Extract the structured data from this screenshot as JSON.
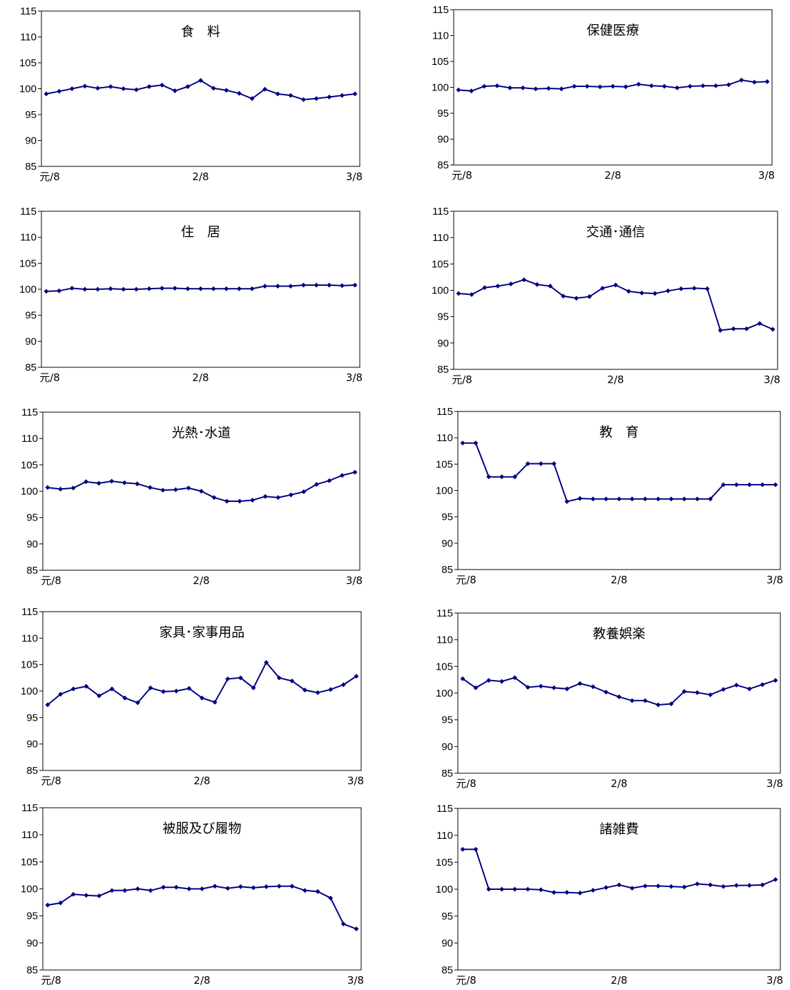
{
  "chart_data": [
    {
      "type": "line",
      "title": "食　料",
      "x_labels": [
        "元/8",
        "2/8",
        "3/8"
      ],
      "ylim": [
        85,
        115
      ],
      "y_ticks": [
        85,
        90,
        95,
        100,
        105,
        110,
        115
      ],
      "color": "#000080",
      "values": [
        99,
        99.5,
        100,
        100.5,
        100.1,
        100.4,
        100,
        99.8,
        100.4,
        100.7,
        99.6,
        100.4,
        101.6,
        100.1,
        99.7,
        99.1,
        98.1,
        99.9,
        99,
        98.7,
        97.9,
        98.1,
        98.4,
        98.7,
        99
      ]
    },
    {
      "type": "line",
      "title": "保健医療",
      "x_labels": [
        "元/8",
        "2/8",
        "3/8"
      ],
      "ylim": [
        85,
        115
      ],
      "y_ticks": [
        85,
        90,
        95,
        100,
        105,
        110,
        115
      ],
      "color": "#000080",
      "values": [
        99.5,
        99.3,
        100.2,
        100.3,
        99.9,
        99.9,
        99.7,
        99.8,
        99.7,
        100.2,
        100.2,
        100.1,
        100.2,
        100.1,
        100.6,
        100.3,
        100.2,
        99.9,
        100.2,
        100.3,
        100.3,
        100.5,
        101.4,
        101,
        101.1
      ]
    },
    {
      "type": "line",
      "title": "住　居",
      "x_labels": [
        "元/8",
        "2/8",
        "3/8"
      ],
      "ylim": [
        85,
        115
      ],
      "y_ticks": [
        85,
        90,
        95,
        100,
        105,
        110,
        115
      ],
      "color": "#000080",
      "values": [
        99.6,
        99.7,
        100.2,
        100,
        100,
        100.1,
        100,
        100,
        100.1,
        100.2,
        100.2,
        100.1,
        100.1,
        100.1,
        100.1,
        100.1,
        100.1,
        100.6,
        100.6,
        100.6,
        100.8,
        100.8,
        100.8,
        100.7,
        100.8
      ]
    },
    {
      "type": "line",
      "title": "交通･通信",
      "x_labels": [
        "元/8",
        "2/8",
        "3/8"
      ],
      "ylim": [
        85,
        115
      ],
      "y_ticks": [
        85,
        90,
        95,
        100,
        105,
        110,
        115
      ],
      "color": "#000080",
      "values": [
        99.4,
        99.2,
        100.5,
        100.8,
        101.2,
        102,
        101.1,
        100.8,
        98.9,
        98.5,
        98.8,
        100.4,
        101,
        99.8,
        99.5,
        99.4,
        99.9,
        100.3,
        100.4,
        100.3,
        92.4,
        92.7,
        92.7,
        93.7,
        92.6
      ]
    },
    {
      "type": "line",
      "title": "光熱･水道",
      "x_labels": [
        "元/8",
        "2/8",
        "3/8"
      ],
      "ylim": [
        85,
        115
      ],
      "y_ticks": [
        85,
        90,
        95,
        100,
        105,
        110,
        115
      ],
      "color": "#000080",
      "values": [
        100.7,
        100.4,
        100.6,
        101.8,
        101.5,
        101.9,
        101.6,
        101.4,
        100.7,
        100.2,
        100.3,
        100.6,
        100,
        98.8,
        98.1,
        98.1,
        98.3,
        99,
        98.8,
        99.3,
        99.9,
        101.3,
        102,
        103,
        103.6
      ]
    },
    {
      "type": "line",
      "title": "教　育",
      "x_labels": [
        "元/8",
        "2/8",
        "3/8"
      ],
      "ylim": [
        85,
        115
      ],
      "y_ticks": [
        85,
        90,
        95,
        100,
        105,
        110,
        115
      ],
      "color": "#000080",
      "values": [
        109,
        109,
        102.6,
        102.6,
        102.6,
        105.1,
        105.1,
        105.1,
        97.9,
        98.5,
        98.4,
        98.4,
        98.4,
        98.4,
        98.4,
        98.4,
        98.4,
        98.4,
        98.4,
        98.4,
        101.1,
        101.1,
        101.1,
        101.1,
        101.1
      ]
    },
    {
      "type": "line",
      "title": "家具･家事用品",
      "x_labels": [
        "元/8",
        "2/8",
        "3/8"
      ],
      "ylim": [
        85,
        115
      ],
      "y_ticks": [
        85,
        90,
        95,
        100,
        105,
        110,
        115
      ],
      "color": "#000080",
      "values": [
        97.4,
        99.4,
        100.4,
        100.9,
        99.1,
        100.4,
        98.7,
        97.8,
        100.6,
        99.9,
        100,
        100.5,
        98.7,
        97.9,
        102.3,
        102.5,
        100.6,
        105.4,
        102.5,
        101.9,
        100.2,
        99.7,
        100.3,
        101.2,
        102.8
      ]
    },
    {
      "type": "line",
      "title": "教養娯楽",
      "x_labels": [
        "元/8",
        "2/8",
        "3/8"
      ],
      "ylim": [
        85,
        115
      ],
      "y_ticks": [
        85,
        90,
        95,
        100,
        105,
        110,
        115
      ],
      "color": "#000080",
      "values": [
        102.7,
        101,
        102.4,
        102.2,
        102.9,
        101.1,
        101.3,
        101,
        100.8,
        101.8,
        101.2,
        100.2,
        99.3,
        98.6,
        98.6,
        97.8,
        98,
        100.3,
        100.1,
        99.7,
        100.7,
        101.5,
        100.8,
        101.6,
        102.4
      ]
    },
    {
      "type": "line",
      "title": "被服及び履物",
      "x_labels": [
        "元/8",
        "2/8",
        "3/8"
      ],
      "ylim": [
        85,
        115
      ],
      "y_ticks": [
        85,
        90,
        95,
        100,
        105,
        110,
        115
      ],
      "color": "#000080",
      "values": [
        97,
        97.4,
        99,
        98.8,
        98.7,
        99.7,
        99.7,
        100,
        99.7,
        100.3,
        100.3,
        100,
        100,
        100.5,
        100.1,
        100.4,
        100.2,
        100.4,
        100.5,
        100.5,
        99.7,
        99.5,
        98.3,
        93.5,
        92.6
      ]
    },
    {
      "type": "line",
      "title": "諸雑費",
      "x_labels": [
        "元/8",
        "2/8",
        "3/8"
      ],
      "ylim": [
        85,
        115
      ],
      "y_ticks": [
        85,
        90,
        95,
        100,
        105,
        110,
        115
      ],
      "color": "#000080",
      "values": [
        107.4,
        107.4,
        100,
        100,
        100,
        100,
        99.9,
        99.4,
        99.4,
        99.3,
        99.8,
        100.3,
        100.8,
        100.2,
        100.6,
        100.6,
        100.5,
        100.4,
        101,
        100.8,
        100.5,
        100.7,
        100.7,
        100.8,
        101.8
      ]
    }
  ]
}
